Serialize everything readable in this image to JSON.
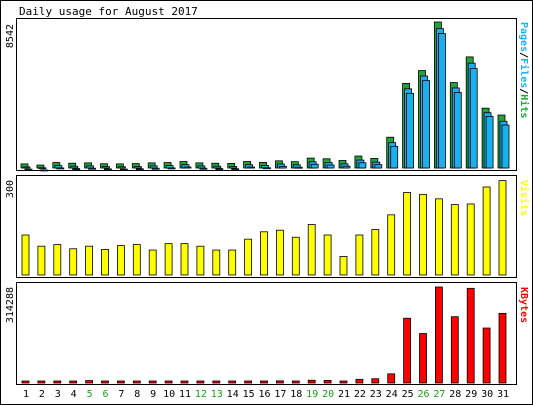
{
  "colors": {
    "border": "#000000",
    "hits": "#22a33a",
    "files": "#1ab0f0",
    "pages": "#1ab0f0",
    "visits": "#ffff00",
    "kbytes": "#ff0000",
    "weekend_label": "#1a9a1a",
    "weekday_label": "#000000"
  },
  "chart_data": [
    {
      "type": "bar",
      "title": "Daily usage for August 2017",
      "panel": "hits-files-pages",
      "ylabel": "8542",
      "ylim": [
        0,
        8542
      ],
      "legend": {
        "pages": "Pages",
        "sep1": "/",
        "files": "Files",
        "sep2": "/",
        "hits": "Hits"
      },
      "categories": [
        "1",
        "2",
        "3",
        "4",
        "5",
        "6",
        "7",
        "8",
        "9",
        "10",
        "11",
        "12",
        "13",
        "14",
        "15",
        "16",
        "17",
        "18",
        "19",
        "20",
        "21",
        "22",
        "23",
        "24",
        "25",
        "26",
        "27",
        "28",
        "29",
        "30",
        "31"
      ],
      "weekend_days": [
        "5",
        "6",
        "12",
        "13",
        "19",
        "20",
        "26",
        "27"
      ],
      "series": [
        {
          "name": "Hits",
          "values": [
            240,
            170,
            320,
            280,
            300,
            250,
            240,
            260,
            300,
            320,
            380,
            300,
            280,
            270,
            380,
            330,
            420,
            370,
            580,
            540,
            440,
            700,
            560,
            1800,
            4950,
            5700,
            8542,
            5000,
            6500,
            3500,
            3100
          ]
        },
        {
          "name": "Files",
          "values": [
            180,
            130,
            260,
            220,
            240,
            200,
            190,
            210,
            240,
            260,
            310,
            240,
            220,
            210,
            310,
            270,
            350,
            300,
            480,
            440,
            360,
            580,
            460,
            1600,
            4750,
            5500,
            8270,
            4800,
            6250,
            3350,
            2850
          ]
        },
        {
          "name": "Pages",
          "values": [
            170,
            120,
            240,
            200,
            220,
            180,
            170,
            190,
            220,
            240,
            290,
            220,
            200,
            190,
            290,
            250,
            330,
            280,
            450,
            410,
            340,
            540,
            430,
            1500,
            4600,
            5350,
            8100,
            4650,
            6050,
            3250,
            2750
          ]
        }
      ]
    },
    {
      "type": "bar",
      "panel": "visits",
      "ylabel": "300",
      "ylim": [
        0,
        300
      ],
      "legend": "Visits",
      "series": [
        {
          "name": "Visits",
          "values": [
            125,
            90,
            95,
            82,
            90,
            80,
            92,
            95,
            78,
            98,
            98,
            90,
            78,
            78,
            112,
            135,
            140,
            118,
            158,
            125,
            58,
            125,
            142,
            188,
            258,
            252,
            238,
            220,
            222,
            275,
            295
          ]
        }
      ]
    },
    {
      "type": "bar",
      "panel": "kbytes",
      "ylabel": "314288",
      "ylim": [
        0,
        314288
      ],
      "legend": "KBytes",
      "series": [
        {
          "name": "KBytes",
          "values": [
            2500,
            2000,
            3500,
            3000,
            8000,
            3000,
            5000,
            4500,
            6000,
            5000,
            4500,
            4000,
            3500,
            3000,
            6000,
            6500,
            7000,
            6000,
            9000,
            8500,
            6500,
            12000,
            14000,
            30000,
            212000,
            162000,
            314288,
            217000,
            310000,
            180000,
            228000
          ]
        }
      ]
    }
  ]
}
